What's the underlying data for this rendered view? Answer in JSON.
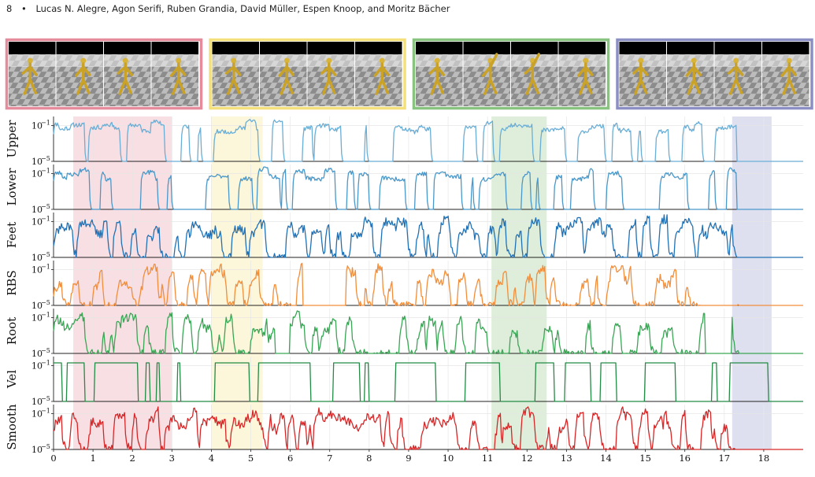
{
  "header": {
    "page_number": "8",
    "bullet": "•",
    "authors": "Lucas N. Alegre, Agon Serifi, Ruben Grandia, David Müller, Espen Knoop, and Moritz Bächer"
  },
  "colors": {
    "pink": "#e58b9b",
    "yellow": "#f4e07a",
    "green": "#88c37f",
    "purple": "#8b8fc4",
    "upper": "#6aaed6",
    "lower": "#4a98c9",
    "feet": "#2171b5",
    "rbs": "#f28e3b",
    "root": "#3aa655",
    "vel": "#238b45",
    "smooth": "#d62728"
  },
  "thumbnails": [
    {
      "color_key": "pink",
      "frames": 4,
      "name": "pink-highlight"
    },
    {
      "color_key": "yellow",
      "frames": 4,
      "name": "yellow-highlight"
    },
    {
      "color_key": "green",
      "frames": 4,
      "name": "green-highlight"
    },
    {
      "color_key": "purple",
      "frames": 4,
      "name": "purple-highlight"
    }
  ],
  "chart_data": {
    "type": "line",
    "xlim": [
      0,
      19
    ],
    "x_ticks": [
      "0",
      "1",
      "2",
      "3",
      "4",
      "5",
      "6",
      "7",
      "8",
      "9",
      "10",
      "11",
      "12",
      "13",
      "14",
      "15",
      "16",
      "17",
      "18"
    ],
    "y_scale": "log",
    "ylim": [
      1e-05,
      1
    ],
    "y_tick_labels": {
      "high_base": "10",
      "high_exp": "−1",
      "low_base": "10",
      "low_exp": "−5"
    },
    "highlight_spans": [
      {
        "color_key": "pink",
        "x": [
          0.5,
          3.0
        ]
      },
      {
        "color_key": "yellow",
        "x": [
          4.0,
          5.3
        ]
      },
      {
        "color_key": "green",
        "x": [
          11.1,
          12.5
        ]
      },
      {
        "color_key": "purple",
        "x": [
          17.2,
          18.2
        ]
      }
    ],
    "panels": [
      {
        "label": "Upper",
        "color_key": "upper",
        "style": "blocky",
        "seed": 11,
        "active_fraction": 0.62,
        "active_ranges": [
          [
            0.0,
            2.9
          ],
          [
            3.1,
            6.0
          ],
          [
            6.3,
            17.3
          ]
        ]
      },
      {
        "label": "Lower",
        "color_key": "lower",
        "style": "blocky",
        "seed": 23,
        "active_fraction": 0.55,
        "active_ranges": [
          [
            0.0,
            17.3
          ]
        ]
      },
      {
        "label": "Feet",
        "color_key": "feet",
        "style": "noisy",
        "seed": 37,
        "active_fraction": 0.7,
        "active_ranges": [
          [
            0.0,
            17.3
          ]
        ]
      },
      {
        "label": "RBS",
        "color_key": "rbs",
        "style": "noisy",
        "seed": 41,
        "active_fraction": 0.5,
        "active_ranges": [
          [
            0.0,
            6.3
          ],
          [
            7.4,
            16.4
          ],
          [
            17.2,
            17.35
          ]
        ]
      },
      {
        "label": "Root",
        "color_key": "root",
        "style": "noisy",
        "seed": 53,
        "active_fraction": 0.48,
        "active_ranges": [
          [
            0.0,
            5.6
          ],
          [
            6.0,
            16.5
          ],
          [
            17.2,
            17.35
          ]
        ]
      },
      {
        "label": "Vel",
        "color_key": "vel",
        "style": "pulse",
        "seed": 67,
        "active_fraction": 0.45,
        "active_ranges": [
          [
            0.0,
            19.0
          ]
        ]
      },
      {
        "label": "Smooth",
        "color_key": "smooth",
        "style": "noisy",
        "seed": 79,
        "active_fraction": 0.55,
        "active_ranges": [
          [
            0.0,
            17.3
          ]
        ]
      }
    ]
  }
}
